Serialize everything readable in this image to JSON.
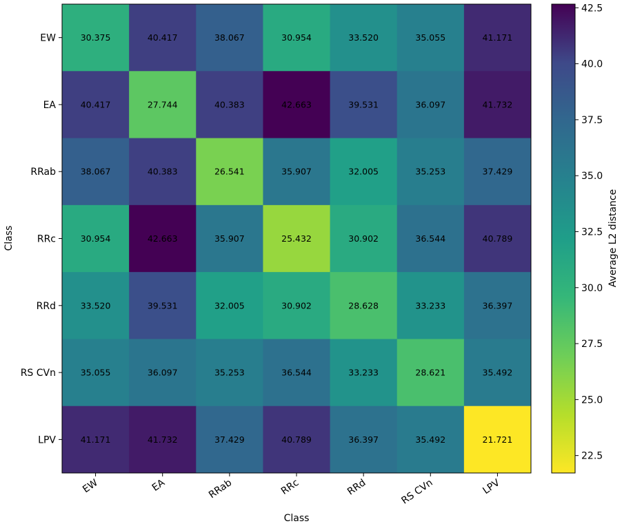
{
  "chart_data": {
    "type": "heatmap",
    "title": "",
    "xlabel": "Class",
    "ylabel": "Class",
    "categories": [
      "EW",
      "EA",
      "RRab",
      "RRc",
      "RRd",
      "RS CVn",
      "LPV"
    ],
    "values": [
      [
        30.375,
        40.417,
        38.067,
        30.954,
        33.52,
        35.055,
        41.171
      ],
      [
        40.417,
        27.744,
        40.383,
        42.663,
        39.531,
        36.097,
        41.732
      ],
      [
        38.067,
        40.383,
        26.541,
        35.907,
        32.005,
        35.253,
        37.429
      ],
      [
        30.954,
        42.663,
        35.907,
        25.432,
        30.902,
        36.544,
        40.789
      ],
      [
        33.52,
        39.531,
        32.005,
        30.902,
        28.628,
        33.233,
        36.397
      ],
      [
        35.055,
        36.097,
        35.253,
        36.544,
        33.233,
        28.621,
        35.492
      ],
      [
        41.171,
        41.732,
        37.429,
        40.789,
        36.397,
        35.492,
        21.721
      ]
    ],
    "cell_labels": [
      [
        "30.375",
        "40.417",
        "38.067",
        "30.954",
        "33.520",
        "35.055",
        "41.171"
      ],
      [
        "40.417",
        "27.744",
        "40.383",
        "42.663",
        "39.531",
        "36.097",
        "41.732"
      ],
      [
        "38.067",
        "40.383",
        "26.541",
        "35.907",
        "32.005",
        "35.253",
        "37.429"
      ],
      [
        "30.954",
        "42.663",
        "35.907",
        "25.432",
        "30.902",
        "36.544",
        "40.789"
      ],
      [
        "33.520",
        "39.531",
        "32.005",
        "30.902",
        "28.628",
        "33.233",
        "36.397"
      ],
      [
        "35.055",
        "36.097",
        "35.253",
        "36.544",
        "33.233",
        "28.621",
        "35.492"
      ],
      [
        "41.171",
        "41.732",
        "37.429",
        "40.789",
        "36.397",
        "35.492",
        "21.721"
      ]
    ],
    "colorbar": {
      "label": "Average L2 distance",
      "range": [
        21.721,
        42.663
      ],
      "ticks": [
        "22.5",
        "25.0",
        "27.5",
        "30.0",
        "32.5",
        "35.0",
        "37.5",
        "40.0",
        "42.5"
      ],
      "colormap": "viridis_r"
    },
    "grid": false
  }
}
